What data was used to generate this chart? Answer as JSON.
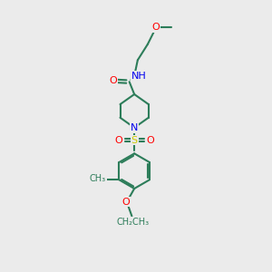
{
  "bg_color": "#ebebeb",
  "bond_color": "#2d7d5a",
  "bond_width": 1.5,
  "atom_colors": {
    "O": "#ff0000",
    "N": "#0000ee",
    "S": "#cccc00",
    "C": "#2d7d5a",
    "H": "#555555"
  },
  "font_size_atom": 8,
  "font_size_small": 7,
  "xlim": [
    0,
    10
  ],
  "ylim": [
    0,
    16
  ]
}
